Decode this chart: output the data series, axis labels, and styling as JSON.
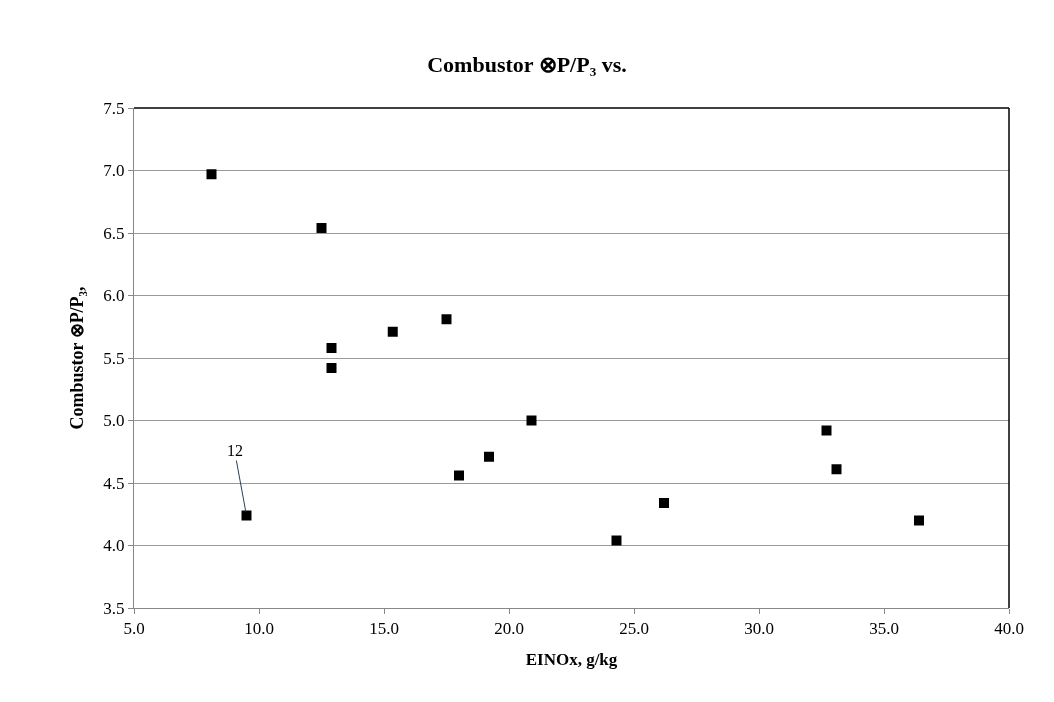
{
  "chart_data": {
    "type": "scatter",
    "title": "Combustor ⊗P/P₃ vs.",
    "xlabel": "EINOx, g/kg",
    "ylabel": "Combustor ⊗P/P₃,",
    "x": [
      8.1,
      12.5,
      12.9,
      12.9,
      15.35,
      17.5,
      9.5,
      18.0,
      19.2,
      20.9,
      24.3,
      26.2,
      32.7,
      33.1,
      36.4
    ],
    "series": [
      {
        "color": "#000000",
        "values": [
          6.97,
          6.54,
          5.58,
          5.42,
          5.71,
          5.81,
          4.24,
          4.56,
          4.71,
          5.0,
          4.04,
          4.34,
          4.92,
          4.61,
          4.2
        ]
      }
    ],
    "annotations": [
      {
        "text": "12",
        "x": 9.5,
        "y": 4.24
      }
    ],
    "xlim": [
      5.0,
      40.0
    ],
    "xticks": [
      {
        "value": 5,
        "label": "5.0"
      },
      {
        "value": 10,
        "label": "10.0"
      },
      {
        "value": 15,
        "label": "15.0"
      },
      {
        "value": 20,
        "label": "20.0"
      },
      {
        "value": 25,
        "label": "25.0"
      },
      {
        "value": 30,
        "label": "30.0"
      },
      {
        "value": 35,
        "label": "35.0"
      },
      {
        "value": 40,
        "label": "40.0"
      }
    ],
    "ylim": [
      3.5,
      7.5
    ],
    "yticks": [
      3.5,
      {
        "value": 4,
        "label": "4.0"
      },
      4.5,
      {
        "value": 5,
        "label": "5.0"
      },
      5.5,
      {
        "value": 6,
        "label": "6.0"
      },
      6.5,
      {
        "value": 7,
        "label": "7.0"
      },
      7.5
    ],
    "grid": "y",
    "marker": "square"
  }
}
